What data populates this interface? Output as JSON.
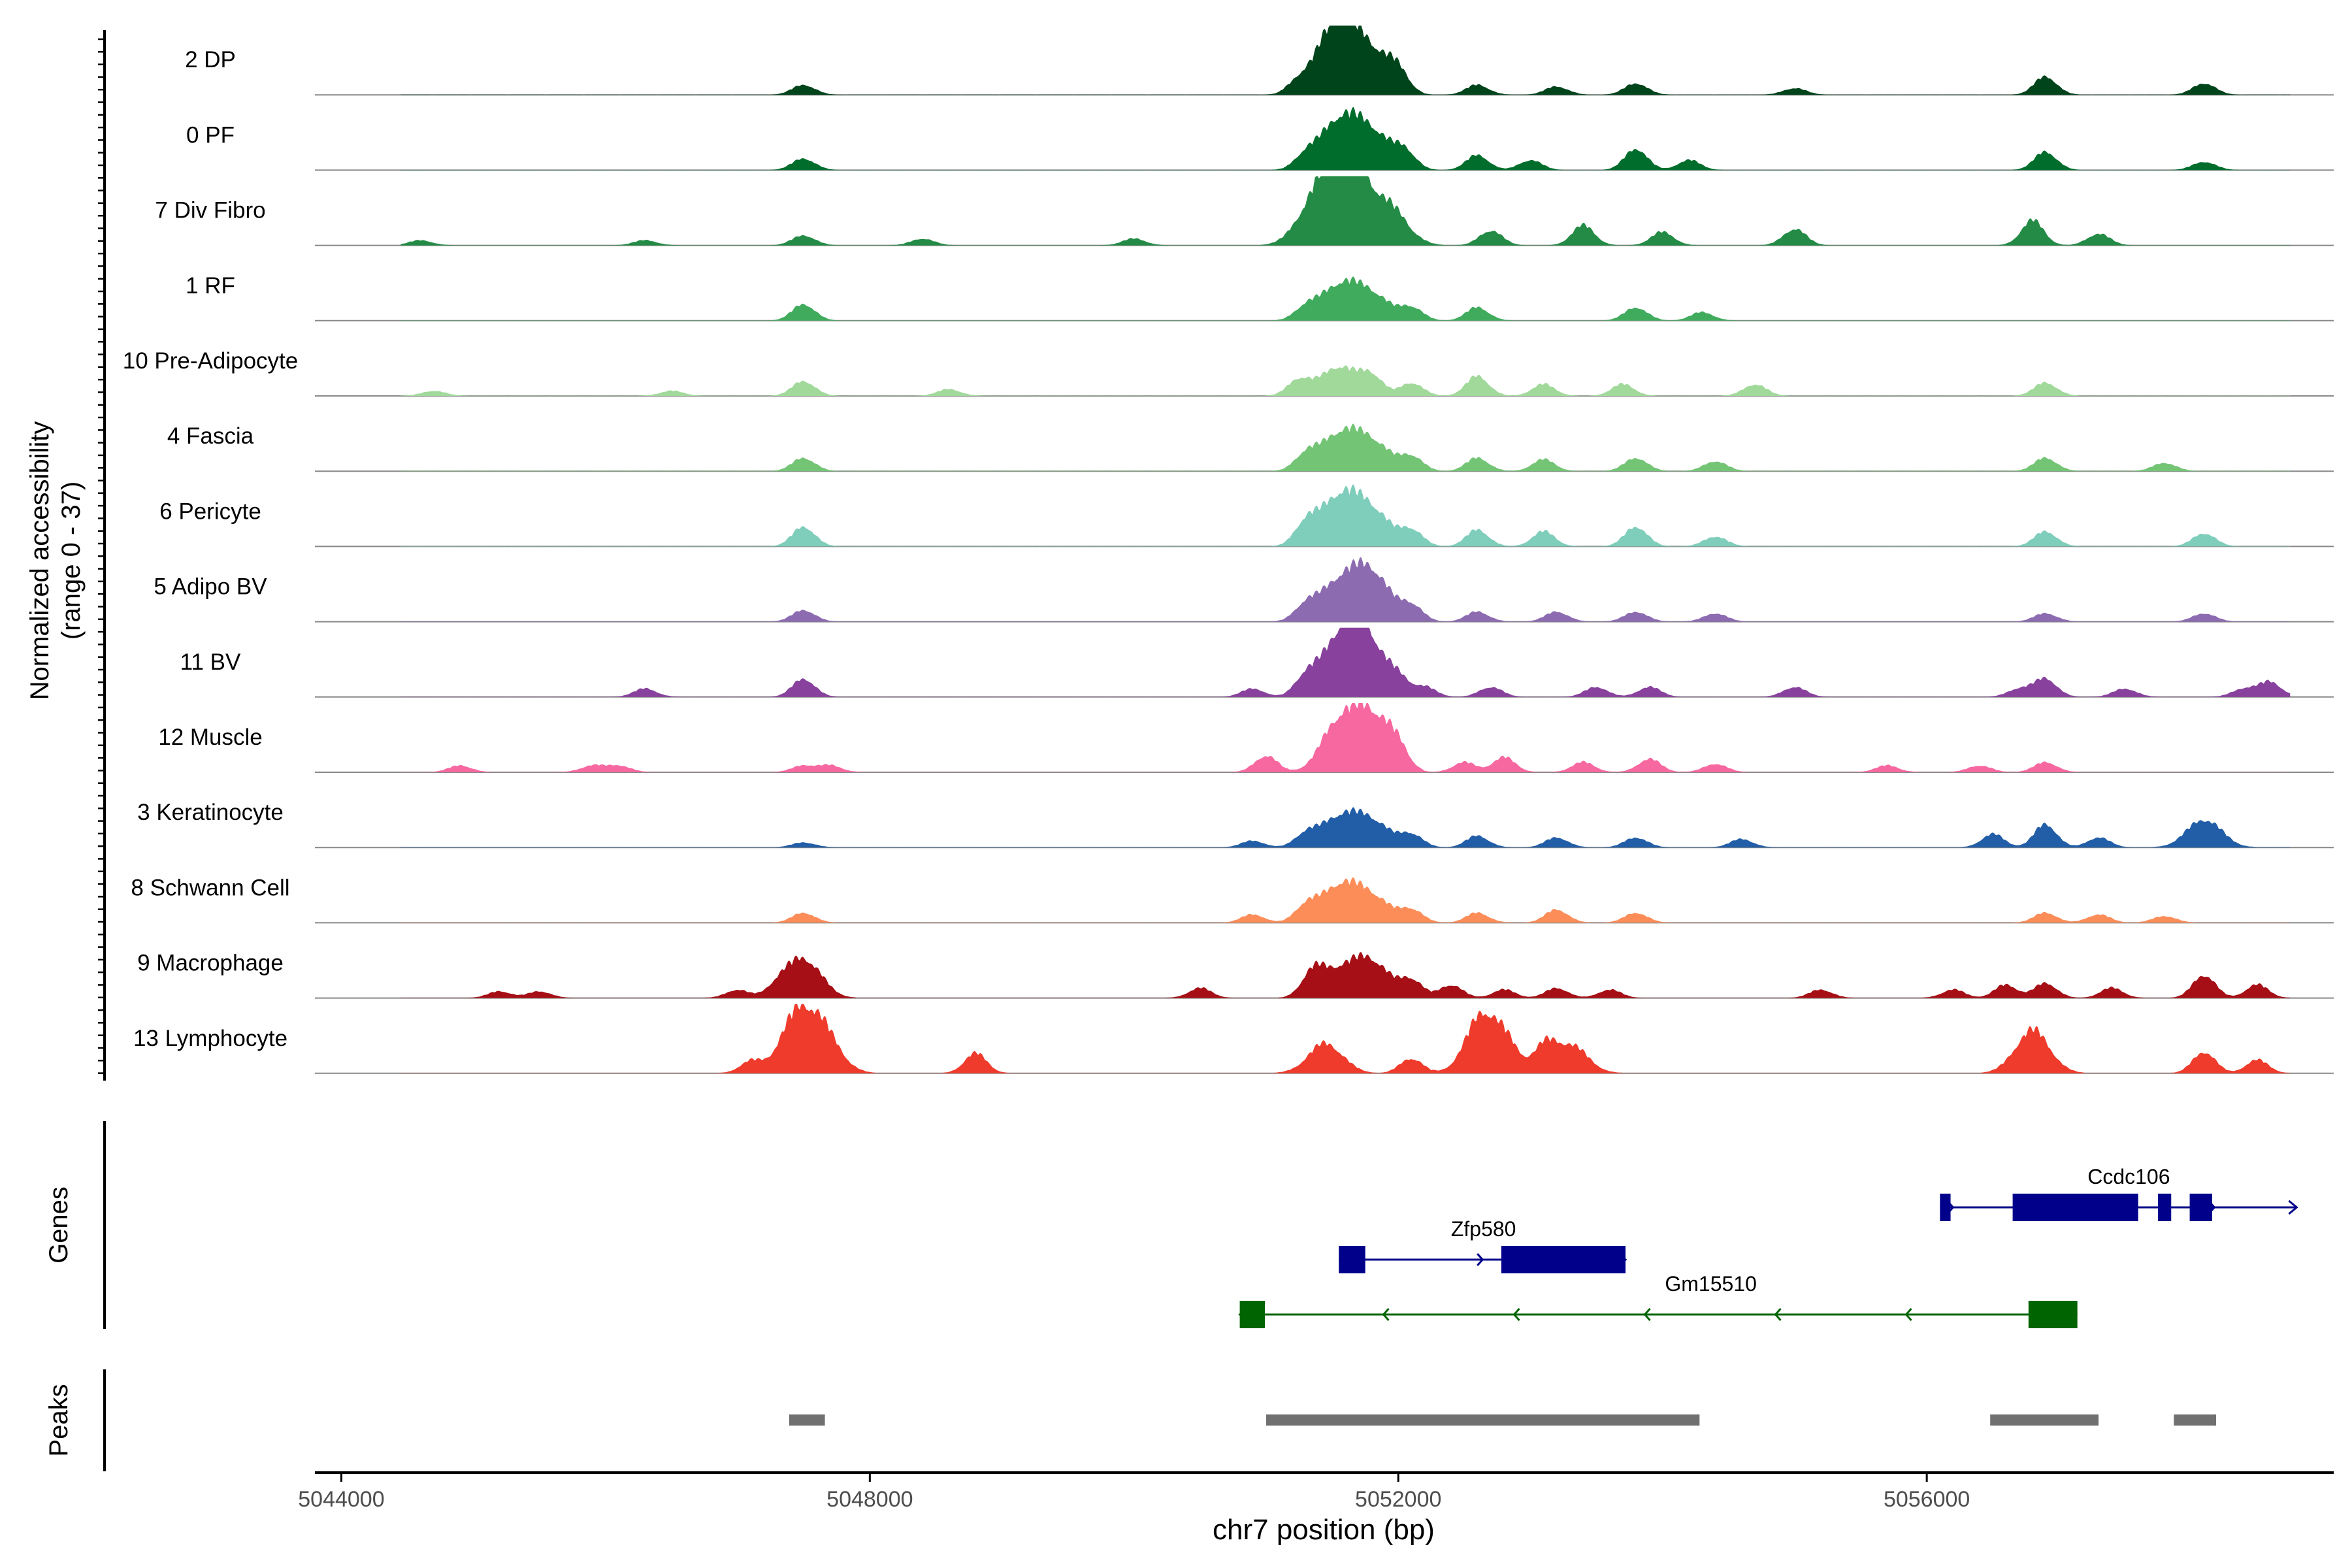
{
  "chart_data": {
    "type": "area",
    "title": "",
    "chromosome": "chr7",
    "xlabel": "chr7 position (bp)",
    "xlim": [
      5043800,
      5059080
    ],
    "xticks": [
      5044000,
      5048000,
      5052000,
      5056000
    ],
    "ylabel_line1": "Normalized accessibility",
    "ylabel_line2": "(range 0 - 37)",
    "ylim": [
      0,
      37
    ],
    "tracks": [
      {
        "label": "2 DP",
        "color": "#00441b",
        "peaks": [
          [
            5047500,
            6
          ],
          [
            5051250,
            8
          ],
          [
            5051500,
            30
          ],
          [
            5051600,
            18
          ],
          [
            5051800,
            24
          ],
          [
            5052000,
            12
          ],
          [
            5052600,
            6
          ],
          [
            5053200,
            5
          ],
          [
            5053800,
            7
          ],
          [
            5055000,
            4
          ],
          [
            5056900,
            11
          ],
          [
            5058100,
            7
          ]
        ]
      },
      {
        "label": "0 PF",
        "color": "#006d2c",
        "peaks": [
          [
            5047500,
            7
          ],
          [
            5051300,
            9
          ],
          [
            5051550,
            30
          ],
          [
            5051800,
            23
          ],
          [
            5052050,
            11
          ],
          [
            5052600,
            9
          ],
          [
            5053000,
            6
          ],
          [
            5053800,
            13
          ],
          [
            5054200,
            6
          ],
          [
            5056900,
            11
          ],
          [
            5058100,
            5
          ]
        ]
      },
      {
        "label": "7 Div Fibro",
        "color": "#238b45",
        "peaks": [
          [
            5044600,
            3
          ],
          [
            5046300,
            3
          ],
          [
            5047500,
            6
          ],
          [
            5048400,
            4
          ],
          [
            5050000,
            4
          ],
          [
            5051350,
            22
          ],
          [
            5051550,
            37
          ],
          [
            5051700,
            30
          ],
          [
            5051950,
            20
          ],
          [
            5052700,
            9
          ],
          [
            5053400,
            12
          ],
          [
            5054000,
            8
          ],
          [
            5055000,
            10
          ],
          [
            5056800,
            15
          ],
          [
            5057300,
            7
          ]
        ]
      },
      {
        "label": "1 RF",
        "color": "#41ab5d",
        "peaks": [
          [
            5047500,
            10
          ],
          [
            5051300,
            8
          ],
          [
            5051550,
            21
          ],
          [
            5051800,
            16
          ],
          [
            5052100,
            8
          ],
          [
            5052600,
            8
          ],
          [
            5053800,
            8
          ],
          [
            5054300,
            5
          ]
        ]
      },
      {
        "label": "10 Pre-Adipocyte",
        "color": "#a1d99b",
        "peaks": [
          [
            5044700,
            3
          ],
          [
            5046500,
            3
          ],
          [
            5047500,
            9
          ],
          [
            5048600,
            4
          ],
          [
            5051250,
            10
          ],
          [
            5051550,
            18
          ],
          [
            5051800,
            12
          ],
          [
            5052100,
            8
          ],
          [
            5052600,
            12
          ],
          [
            5053100,
            7
          ],
          [
            5053700,
            7
          ],
          [
            5054700,
            7
          ],
          [
            5056900,
            8
          ]
        ]
      },
      {
        "label": "4 Fascia",
        "color": "#74c476",
        "peaks": [
          [
            5047500,
            8
          ],
          [
            5051300,
            10
          ],
          [
            5051550,
            22
          ],
          [
            5051800,
            18
          ],
          [
            5052100,
            9
          ],
          [
            5052600,
            8
          ],
          [
            5053100,
            7
          ],
          [
            5053800,
            8
          ],
          [
            5054400,
            6
          ],
          [
            5056900,
            8
          ],
          [
            5057800,
            5
          ]
        ]
      },
      {
        "label": "6 Pericyte",
        "color": "#7fcdbb",
        "peaks": [
          [
            5047500,
            12
          ],
          [
            5051300,
            14
          ],
          [
            5051550,
            30
          ],
          [
            5051800,
            22
          ],
          [
            5052100,
            10
          ],
          [
            5052600,
            10
          ],
          [
            5053100,
            9
          ],
          [
            5053800,
            12
          ],
          [
            5054400,
            6
          ],
          [
            5056900,
            9
          ],
          [
            5058100,
            8
          ]
        ]
      },
      {
        "label": "5 Adipo BV",
        "color": "#8c6bb1",
        "peaks": [
          [
            5047500,
            7
          ],
          [
            5051300,
            10
          ],
          [
            5051550,
            24
          ],
          [
            5051800,
            30
          ],
          [
            5052100,
            10
          ],
          [
            5052600,
            6
          ],
          [
            5053200,
            6
          ],
          [
            5053800,
            6
          ],
          [
            5054400,
            5
          ],
          [
            5056900,
            5
          ],
          [
            5058100,
            5
          ]
        ]
      },
      {
        "label": "11 BV",
        "color": "#88419d",
        "peaks": [
          [
            5046300,
            5
          ],
          [
            5047500,
            11
          ],
          [
            5050900,
            5
          ],
          [
            5051300,
            12
          ],
          [
            5051550,
            32
          ],
          [
            5051750,
            37
          ],
          [
            5052000,
            10
          ],
          [
            5052200,
            6
          ],
          [
            5052700,
            6
          ],
          [
            5053500,
            6
          ],
          [
            5053900,
            6
          ],
          [
            5055000,
            6
          ],
          [
            5056700,
            5
          ],
          [
            5056900,
            11
          ],
          [
            5057500,
            5
          ],
          [
            5058400,
            5
          ],
          [
            5058600,
            9
          ]
        ]
      },
      {
        "label": "12 Muscle",
        "color": "#f768a1",
        "peaks": [
          [
            5044900,
            4
          ],
          [
            5045900,
            4
          ],
          [
            5046100,
            4
          ],
          [
            5047500,
            4
          ],
          [
            5047700,
            4
          ],
          [
            5051000,
            10
          ],
          [
            5051550,
            30
          ],
          [
            5051800,
            34
          ],
          [
            5052000,
            12
          ],
          [
            5052500,
            6
          ],
          [
            5052800,
            9
          ],
          [
            5053400,
            6
          ],
          [
            5053900,
            8
          ],
          [
            5054400,
            5
          ],
          [
            5055700,
            4
          ],
          [
            5056400,
            4
          ],
          [
            5056900,
            6
          ]
        ]
      },
      {
        "label": "3 Keratinocyte",
        "color": "#225ea8",
        "peaks": [
          [
            5047500,
            3
          ],
          [
            5050900,
            4
          ],
          [
            5051300,
            8
          ],
          [
            5051550,
            18
          ],
          [
            5051800,
            16
          ],
          [
            5052100,
            8
          ],
          [
            5052600,
            7
          ],
          [
            5053200,
            6
          ],
          [
            5053800,
            6
          ],
          [
            5054600,
            5
          ],
          [
            5056500,
            8
          ],
          [
            5056900,
            14
          ],
          [
            5057300,
            6
          ],
          [
            5058100,
            17
          ]
        ]
      },
      {
        "label": "8 Schwann Cell",
        "color": "#fc8d59",
        "peaks": [
          [
            5047500,
            6
          ],
          [
            5050900,
            5
          ],
          [
            5051300,
            10
          ],
          [
            5051550,
            22
          ],
          [
            5051800,
            16
          ],
          [
            5052100,
            8
          ],
          [
            5052600,
            6
          ],
          [
            5053200,
            8
          ],
          [
            5053800,
            6
          ],
          [
            5056900,
            6
          ],
          [
            5057300,
            5
          ],
          [
            5057800,
            4
          ]
        ]
      },
      {
        "label": "9 Macrophage",
        "color": "#a50f15",
        "peaks": [
          [
            5045200,
            4
          ],
          [
            5045500,
            4
          ],
          [
            5047000,
            5
          ],
          [
            5047300,
            6
          ],
          [
            5047500,
            24
          ],
          [
            5050500,
            6
          ],
          [
            5051350,
            14
          ],
          [
            5051550,
            16
          ],
          [
            5051800,
            22
          ],
          [
            5052100,
            11
          ],
          [
            5052400,
            8
          ],
          [
            5052800,
            5
          ],
          [
            5053200,
            6
          ],
          [
            5053600,
            5
          ],
          [
            5055200,
            5
          ],
          [
            5056200,
            5
          ],
          [
            5056600,
            8
          ],
          [
            5056900,
            9
          ],
          [
            5057400,
            6
          ],
          [
            5058100,
            14
          ],
          [
            5058500,
            8
          ]
        ]
      },
      {
        "label": "13 Lymphocyte",
        "color": "#ef3b2c",
        "peaks": [
          [
            5047100,
            7
          ],
          [
            5047450,
            33
          ],
          [
            5047650,
            22
          ],
          [
            5048800,
            12
          ],
          [
            5051450,
            18
          ],
          [
            5052100,
            9
          ],
          [
            5052650,
            37
          ],
          [
            5052850,
            10
          ],
          [
            5053100,
            14
          ],
          [
            5053300,
            17
          ],
          [
            5056800,
            26
          ],
          [
            5058100,
            13
          ],
          [
            5058500,
            8
          ]
        ]
      }
    ],
    "genes": [
      {
        "name": "Ccdc106",
        "strand": "+",
        "color": "#00008b",
        "start": 5056100,
        "end": 5058800,
        "exons": [
          [
            5056100,
            5056180
          ],
          [
            5056650,
            5057600
          ],
          [
            5057750,
            5057850
          ],
          [
            5057990,
            5058160
          ]
        ]
      },
      {
        "name": "Zfp580",
        "strand": "+",
        "color": "#00008b",
        "start": 5051550,
        "end": 5053720,
        "exons": [
          [
            5051550,
            5051750
          ],
          [
            5052780,
            5053720
          ]
        ]
      },
      {
        "name": "Gm15510",
        "strand": "-",
        "color": "#006400",
        "start": 5050800,
        "end": 5057140,
        "exons": [
          [
            5050800,
            5050990
          ],
          [
            5056770,
            5057140
          ]
        ]
      }
    ],
    "peaks_track": {
      "label": "Peaks",
      "color": "#707070",
      "regions": [
        [
          5047390,
          5047660
        ],
        [
          5051000,
          5054280
        ],
        [
          5056480,
          5057300
        ],
        [
          5057870,
          5058190
        ]
      ]
    },
    "genes_label": "Genes"
  }
}
